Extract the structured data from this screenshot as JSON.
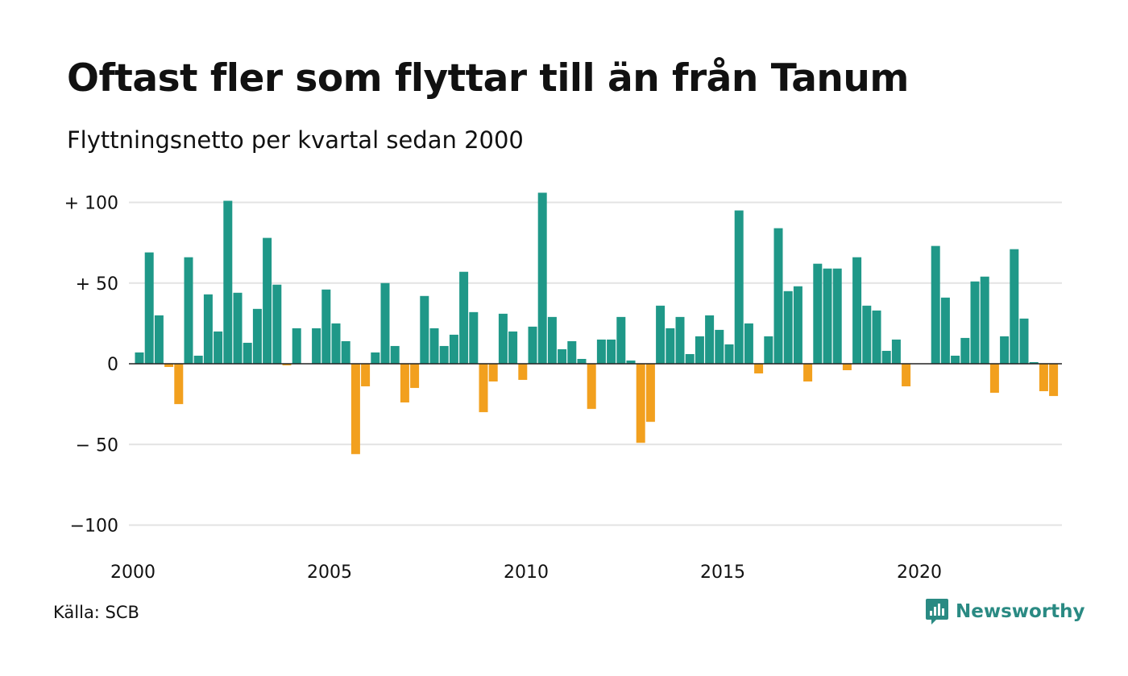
{
  "title": "Oftast fler som flyttar till än från Tanum",
  "subtitle": "Flyttningsnetto per kvartal sedan 2000",
  "source": "Källa: SCB",
  "brand": {
    "name": "Newsworthy",
    "icon": "newsworthy-logo-icon"
  },
  "colors": {
    "positive": "#1f9888",
    "negative": "#f2a01e",
    "grid": "#e3e3e3",
    "zero_line": "#222222",
    "brand": "#2a8a83"
  },
  "chart_data": {
    "type": "bar",
    "title": "Oftast fler som flyttar till än från Tanum",
    "subtitle": "Flyttningsnetto per kvartal sedan 2000",
    "xlabel": "",
    "ylabel": "",
    "ylim": [
      -110,
      107
    ],
    "grid": true,
    "y_ticks": [
      {
        "value": 100,
        "label": "+ 100"
      },
      {
        "value": 50,
        "label": "+  50"
      },
      {
        "value": 0,
        "label": "0"
      },
      {
        "value": -50,
        "label": "− 50"
      },
      {
        "value": -100,
        "label": "−100"
      }
    ],
    "x_ticks": [
      "2000",
      "2005",
      "2010",
      "2015",
      "2020"
    ],
    "start_year": 2000,
    "values": [
      7,
      69,
      30,
      -2,
      -25,
      66,
      5,
      43,
      20,
      101,
      44,
      13,
      34,
      78,
      49,
      -1,
      22,
      0,
      22,
      46,
      25,
      14,
      -56,
      -14,
      7,
      50,
      11,
      -24,
      -15,
      42,
      22,
      11,
      18,
      57,
      32,
      -30,
      -11,
      31,
      20,
      -10,
      23,
      106,
      29,
      9,
      14,
      3,
      -28,
      15,
      15,
      29,
      2,
      -49,
      -36,
      36,
      22,
      29,
      6,
      17,
      30,
      21,
      12,
      95,
      25,
      -6,
      17,
      84,
      45,
      48,
      -11,
      62,
      59,
      59,
      -4,
      66,
      36,
      33,
      8,
      15,
      -14,
      0,
      0,
      73,
      41,
      5,
      16,
      51,
      54,
      -18,
      17,
      71,
      28,
      1,
      -17,
      -20
    ]
  }
}
